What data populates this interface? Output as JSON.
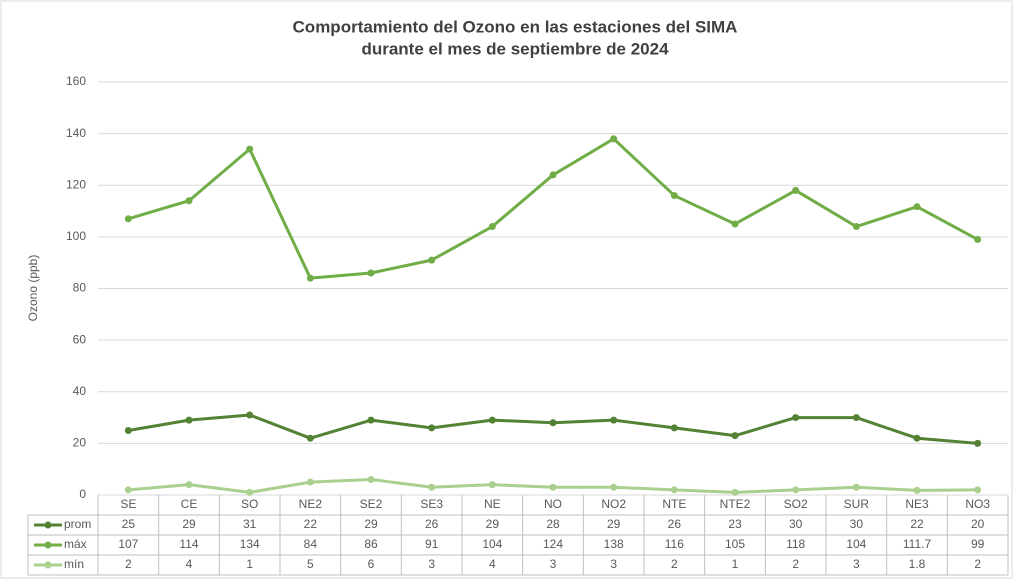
{
  "chart_data": {
    "type": "line",
    "title": [
      "Comportamiento del Ozono en las estaciones del SIMA",
      "durante el mes de septiembre de 2024"
    ],
    "y_label": "Ozono (ppb)",
    "categories": [
      "SE",
      "CE",
      "SO",
      "NE2",
      "SE2",
      "SE3",
      "NE",
      "NO",
      "NO2",
      "NTE",
      "NTE2",
      "SO2",
      "SUR",
      "NE3",
      "NO3"
    ],
    "series": [
      {
        "name": "prom",
        "color": "#548235",
        "values": [
          25,
          29,
          31,
          22,
          29,
          26,
          29,
          28,
          29,
          26,
          23,
          30,
          30,
          22,
          20
        ]
      },
      {
        "name": "máx",
        "color": "#70ad47",
        "values": [
          107,
          114,
          134,
          84,
          86,
          91,
          104,
          124,
          138,
          116,
          105,
          118,
          104,
          111.7,
          99
        ]
      },
      {
        "name": "mín",
        "color": "#a9d08e",
        "values": [
          2,
          4,
          1,
          5,
          6,
          3,
          4,
          3,
          3,
          2,
          1,
          2,
          3,
          1.8,
          2
        ]
      }
    ],
    "ylim": [
      0,
      160
    ],
    "yticks": [
      0,
      20,
      40,
      60,
      80,
      100,
      120,
      140,
      160
    ],
    "grid": true
  }
}
